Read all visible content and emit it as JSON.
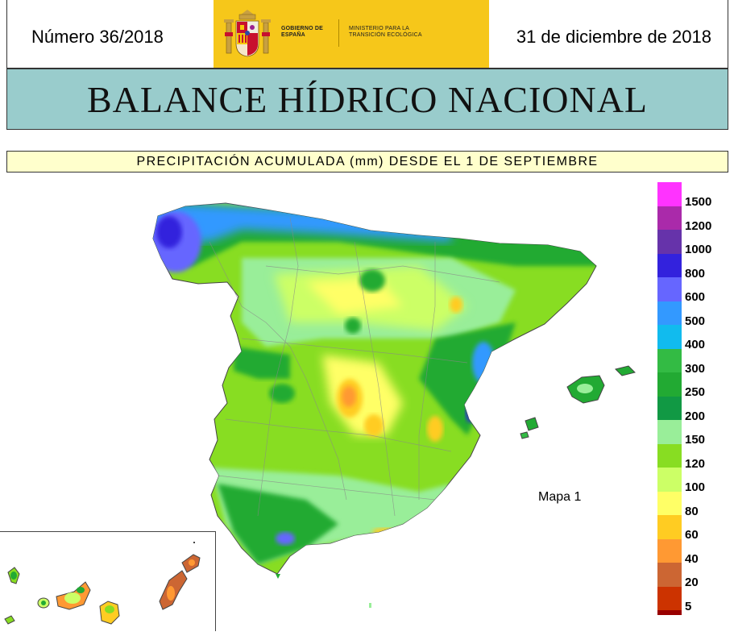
{
  "header": {
    "issue_number": "Número 36/2018",
    "date": "31 de diciembre de 2018",
    "logo": {
      "government": "GOBIERNO DE ESPAÑA",
      "ministry": "MINISTERIO PARA LA TRANSICIÓN ECOLÓGICA"
    }
  },
  "title": "BALANCE HÍDRICO NACIONAL",
  "subtitle": "PRECIPITACIÓN ACUMULADA (mm) DESDE EL 1 DE SEPTIEMBRE",
  "map_label": "Mapa 1",
  "legend": {
    "items": [
      {
        "label": "1500",
        "color": "#ff33ff"
      },
      {
        "label": "1200",
        "color": "#aa2aaa"
      },
      {
        "label": "1000",
        "color": "#6633aa"
      },
      {
        "label": "800",
        "color": "#3322dd"
      },
      {
        "label": "600",
        "color": "#6666ff"
      },
      {
        "label": "500",
        "color": "#3399ff"
      },
      {
        "label": "400",
        "color": "#11bbee"
      },
      {
        "label": "300",
        "color": "#33bb44"
      },
      {
        "label": "250",
        "color": "#22aa33"
      },
      {
        "label": "200",
        "color": "#119944"
      },
      {
        "label": "150",
        "color": "#99ee99"
      },
      {
        "label": "120",
        "color": "#88dd22"
      },
      {
        "label": "100",
        "color": "#ccff66"
      },
      {
        "label": "80",
        "color": "#ffff66"
      },
      {
        "label": "60",
        "color": "#ffcc22"
      },
      {
        "label": "40",
        "color": "#ff9933"
      },
      {
        "label": "20",
        "color": "#cc6633"
      },
      {
        "label": "5",
        "color": "#cc3300"
      }
    ],
    "bottom_color": "#990000"
  }
}
